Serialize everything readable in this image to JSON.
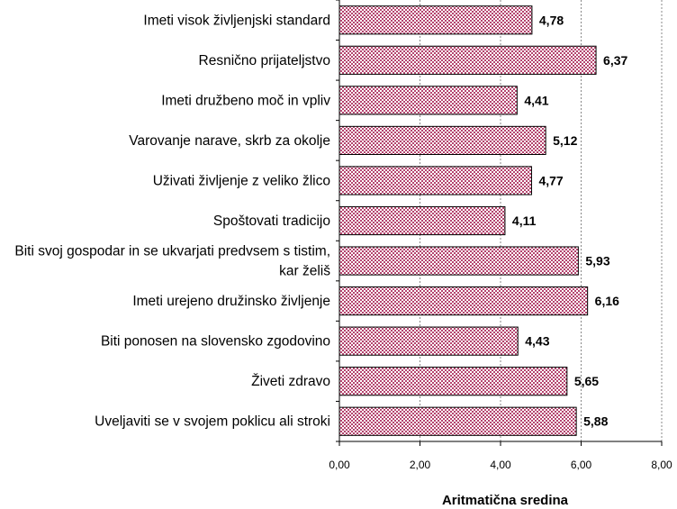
{
  "chart_data": {
    "type": "bar",
    "orientation": "horizontal",
    "categories": [
      [
        "Imeti visok življenjski standard"
      ],
      [
        "Resnično prijateljstvo"
      ],
      [
        "Imeti družbeno moč in vpliv"
      ],
      [
        "Varovanje narave, skrb za okolje"
      ],
      [
        "Uživati življenje z veliko žlico"
      ],
      [
        "Spoštovati tradicijo"
      ],
      [
        "Biti svoj gospodar in se ukvarjati predvsem s tistim,",
        "kar želiš"
      ],
      [
        "Imeti urejeno družinsko življenje"
      ],
      [
        "Biti ponosen na slovensko zgodovino"
      ],
      [
        "Živeti zdravo"
      ],
      [
        "Uveljaviti se v svojem poklicu ali stroki"
      ]
    ],
    "values": [
      4.78,
      6.37,
      4.41,
      5.12,
      4.77,
      4.11,
      5.93,
      6.16,
      4.43,
      5.65,
      5.88
    ],
    "value_labels": [
      "4,78",
      "6,37",
      "4,41",
      "5,12",
      "4,77",
      "4,11",
      "5,93",
      "6,16",
      "4,43",
      "5,65",
      "5,88"
    ],
    "xlabel": "Aritmatična sredina",
    "xlim": [
      0,
      8
    ],
    "xticks": [
      0,
      2,
      4,
      6,
      8
    ],
    "xtick_labels": [
      "0,00",
      "2,00",
      "4,00",
      "6,00",
      "8,00"
    ],
    "grid": "vertical dashed",
    "legend": "none",
    "colors": {
      "bar_pattern": "#b4446e",
      "bar_background": "#ffffff",
      "bar_border": "#000000",
      "grid": "#888888"
    }
  }
}
